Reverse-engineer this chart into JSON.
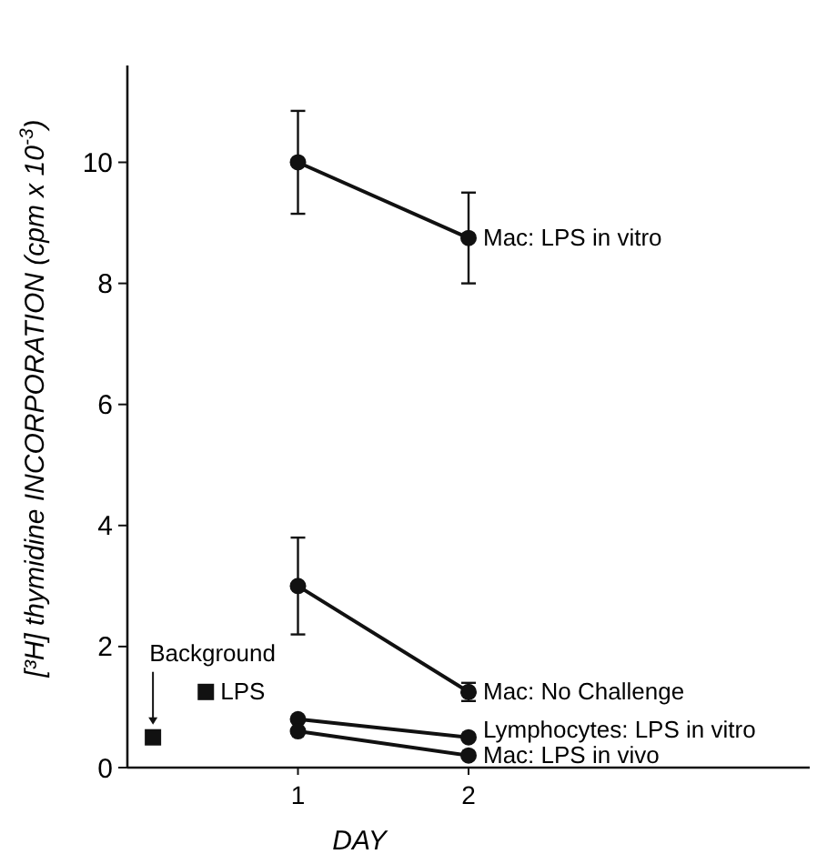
{
  "chart_data": {
    "type": "line",
    "xlabel": "DAY",
    "ylabel": "[³H] thymidine INCORPORATION (cpm x 10$^{-3}$)",
    "xlim": [
      0,
      4
    ],
    "xticks": [
      1,
      2
    ],
    "ylim": [
      0,
      11.6
    ],
    "yticks": [
      0,
      2,
      4,
      6,
      8,
      10
    ],
    "marker": "circle",
    "line_style": "solid",
    "series": [
      {
        "name": "Mac: LPS in vitro",
        "color": "#111111",
        "x": [
          1,
          2
        ],
        "values": [
          10,
          8.75
        ],
        "errors": [
          0.85,
          0.75
        ]
      },
      {
        "name": "Mac: No Challenge",
        "color": "#111111",
        "x": [
          1,
          2
        ],
        "values": [
          3.0,
          1.25
        ],
        "errors": [
          0.8,
          0.15
        ]
      },
      {
        "name": "Lymphocytes: LPS in vitro",
        "color": "#111111",
        "x": [
          1,
          2
        ],
        "values": [
          0.8,
          0.5
        ],
        "errors": [
          null,
          null
        ]
      },
      {
        "name": "Mac: LPS in vivo",
        "color": "#111111",
        "x": [
          1,
          2
        ],
        "values": [
          0.6,
          0.2
        ],
        "errors": [
          null,
          null
        ]
      },
      {
        "name": "Background",
        "type": "scatter",
        "marker": "square",
        "color": "#111111",
        "x": [
          0.15
        ],
        "values": [
          0.5
        ],
        "errors": [
          null
        ]
      },
      {
        "name": "LPS",
        "type": "scatter",
        "marker": "square",
        "color": "#111111",
        "x": [
          0.46
        ],
        "values": [
          1.25
        ],
        "errors": [
          0.1
        ]
      }
    ]
  }
}
